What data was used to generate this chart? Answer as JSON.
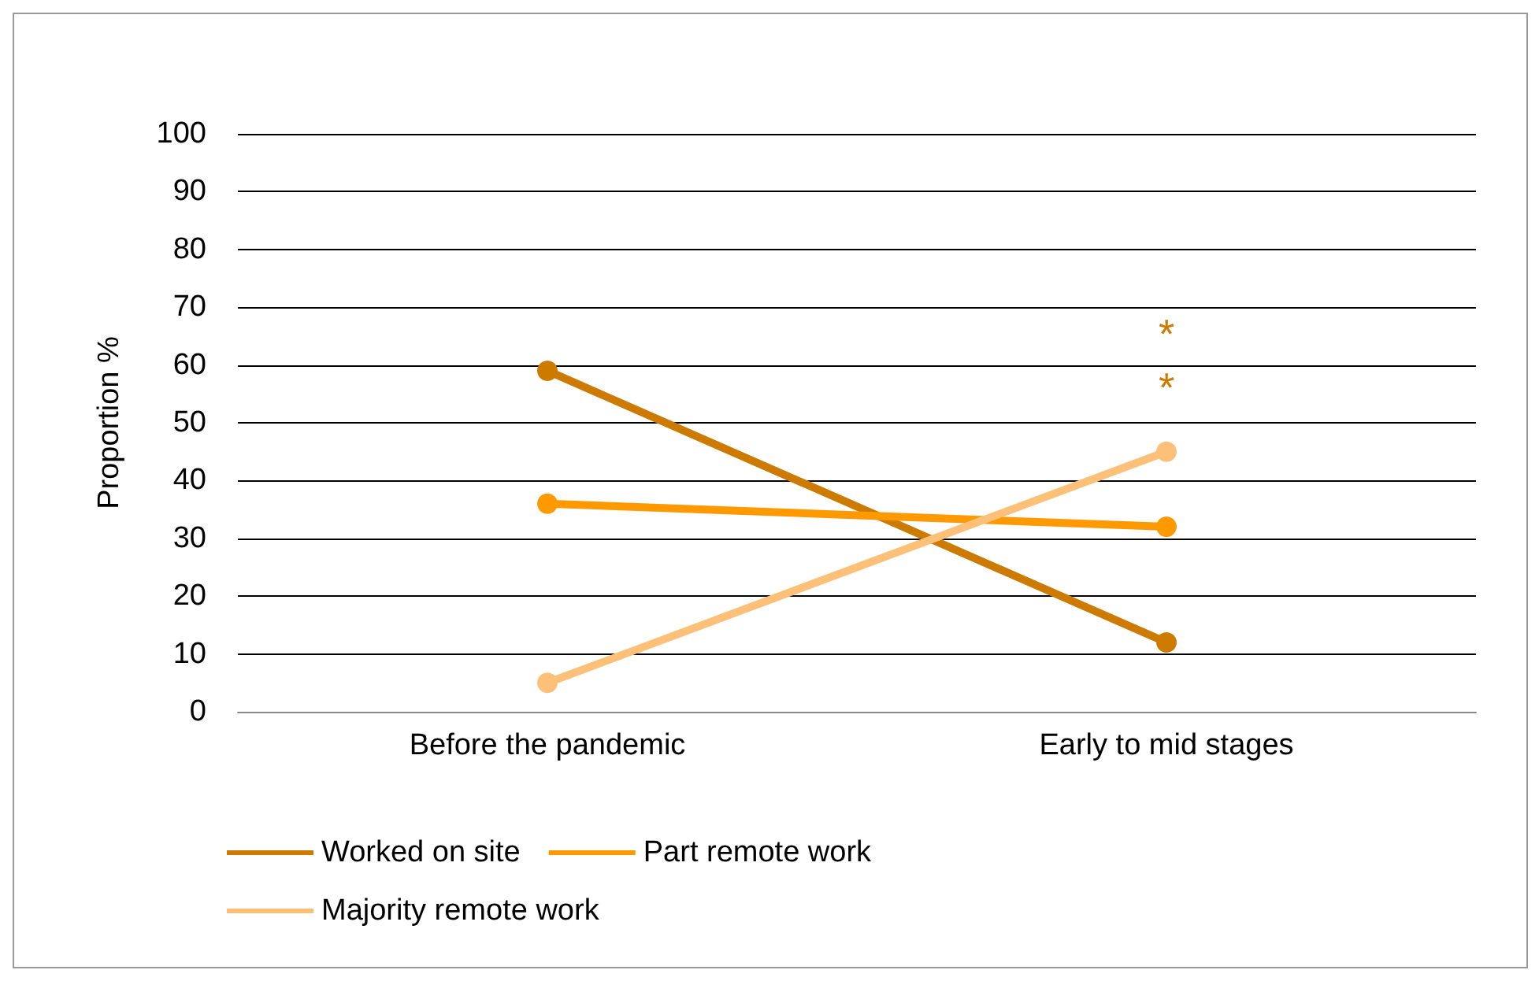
{
  "chart_data": {
    "type": "line",
    "ylabel": "Proportion %",
    "categories": [
      "Before the pandemic",
      "Early to mid stages"
    ],
    "series": [
      {
        "name": "Worked on site",
        "color": "#cc7a00",
        "values": [
          59,
          12
        ]
      },
      {
        "name": "Part remote work",
        "color": "#ff9900",
        "values": [
          36,
          32
        ]
      },
      {
        "name": "Majority remote work",
        "color": "#fcc078",
        "values": [
          5,
          45
        ]
      }
    ],
    "annotations": [
      "*",
      "*"
    ],
    "ylim": [
      0,
      100
    ],
    "yticks": [
      0,
      10,
      20,
      30,
      40,
      50,
      60,
      70,
      80,
      90,
      100
    ],
    "grid": "y",
    "legend": "bottom",
    "marker": "circle",
    "line_style": "solid"
  }
}
